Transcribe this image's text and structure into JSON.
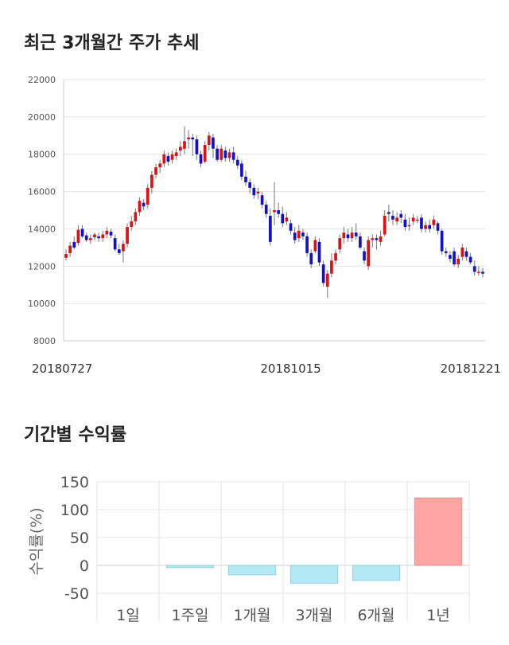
{
  "sections": {
    "price_title": "최근 3개월간 주가 추세",
    "returns_title": "기간별 수익률"
  },
  "chart_data": [
    {
      "type": "candlestick",
      "title": "최근 3개월간 주가 추세",
      "ylim": [
        8000,
        22000
      ],
      "y_ticks": [
        8000,
        10000,
        12000,
        14000,
        16000,
        18000,
        20000,
        22000
      ],
      "x_tick_labels": [
        {
          "label": "20180727",
          "index": 0
        },
        {
          "label": "20181015",
          "index": 55
        },
        {
          "label": "20181221",
          "index": 102
        }
      ],
      "colors": {
        "up": "#dd1111",
        "down": "#1111cc"
      },
      "grid": true,
      "candles": [
        [
          12450,
          12650,
          12300,
          12900
        ],
        [
          12700,
          13100,
          12500,
          13300
        ],
        [
          13300,
          13000,
          12900,
          13600
        ],
        [
          13250,
          13950,
          13100,
          14200
        ],
        [
          14000,
          13600,
          13500,
          14200
        ],
        [
          13650,
          13400,
          13300,
          13800
        ],
        [
          13400,
          13500,
          13200,
          13700
        ],
        [
          13550,
          13700,
          13400,
          13800
        ],
        [
          13600,
          13500,
          13300,
          13800
        ],
        [
          13500,
          13700,
          13300,
          13900
        ],
        [
          13700,
          13900,
          13500,
          14100
        ],
        [
          13850,
          13650,
          13500,
          14000
        ],
        [
          13500,
          12900,
          12800,
          13700
        ],
        [
          12900,
          12700,
          12600,
          13200
        ],
        [
          12800,
          13200,
          12200,
          13400
        ],
        [
          13200,
          14100,
          13000,
          14300
        ],
        [
          14100,
          14400,
          13900,
          14700
        ],
        [
          14400,
          14900,
          14200,
          15100
        ],
        [
          14900,
          15500,
          14700,
          15700
        ],
        [
          15400,
          15200,
          15000,
          15600
        ],
        [
          15300,
          16200,
          15100,
          16400
        ],
        [
          16200,
          16900,
          15900,
          17100
        ],
        [
          16900,
          17300,
          16700,
          17500
        ],
        [
          17300,
          17500,
          17000,
          17700
        ],
        [
          17500,
          18000,
          17300,
          18200
        ],
        [
          17900,
          17600,
          17400,
          18100
        ],
        [
          17700,
          18000,
          17500,
          18200
        ],
        [
          17900,
          18100,
          17700,
          18300
        ],
        [
          18200,
          18400,
          17900,
          18700
        ],
        [
          18300,
          18700,
          18000,
          19500
        ],
        [
          18800,
          18900,
          18300,
          19300
        ],
        [
          18900,
          18800,
          17900,
          19100
        ],
        [
          18800,
          18000,
          17700,
          19000
        ],
        [
          18000,
          17500,
          17300,
          18200
        ],
        [
          17600,
          18500,
          17500,
          18700
        ],
        [
          18500,
          19000,
          18200,
          19200
        ],
        [
          18900,
          18300,
          17800,
          19100
        ],
        [
          18300,
          17700,
          17600,
          18500
        ],
        [
          17700,
          18300,
          17600,
          18500
        ],
        [
          18200,
          17800,
          17600,
          18400
        ],
        [
          17800,
          18100,
          17600,
          18300
        ],
        [
          18100,
          17700,
          17500,
          18400
        ],
        [
          17700,
          17400,
          17200,
          17900
        ],
        [
          17500,
          16800,
          16600,
          17700
        ],
        [
          16800,
          16500,
          16300,
          17100
        ],
        [
          16500,
          16200,
          15900,
          16700
        ],
        [
          16200,
          15800,
          15600,
          16400
        ],
        [
          15900,
          16000,
          15600,
          16200
        ],
        [
          15800,
          15300,
          15100,
          16000
        ],
        [
          15300,
          14800,
          14600,
          15500
        ],
        [
          14700,
          13300,
          13100,
          15100
        ],
        [
          14900,
          15000,
          14200,
          16500
        ],
        [
          15000,
          14800,
          14600,
          15400
        ],
        [
          14800,
          14300,
          14100,
          15200
        ],
        [
          14400,
          14600,
          14200,
          14900
        ],
        [
          14300,
          13900,
          13700,
          14500
        ],
        [
          13800,
          13400,
          13200,
          14100
        ],
        [
          13500,
          13900,
          13300,
          14200
        ],
        [
          13800,
          13600,
          13400,
          14000
        ],
        [
          13600,
          12700,
          12500,
          13800
        ],
        [
          12700,
          12100,
          11900,
          12900
        ],
        [
          12800,
          13400,
          12700,
          13600
        ],
        [
          13300,
          12200,
          12000,
          13500
        ],
        [
          12100,
          11100,
          10900,
          12300
        ],
        [
          10900,
          11600,
          10300,
          11800
        ],
        [
          11600,
          12300,
          11400,
          12700
        ],
        [
          12300,
          12700,
          12100,
          12900
        ],
        [
          12900,
          13500,
          12700,
          13700
        ],
        [
          13500,
          13800,
          13200,
          14100
        ],
        [
          13700,
          13500,
          13300,
          14000
        ],
        [
          13500,
          13800,
          13300,
          14100
        ],
        [
          13800,
          13600,
          13400,
          14300
        ],
        [
          13600,
          13000,
          12900,
          13800
        ],
        [
          12800,
          12300,
          12100,
          13000
        ],
        [
          12000,
          13400,
          11800,
          13600
        ],
        [
          13400,
          13500,
          13000,
          13700
        ],
        [
          13500,
          13400,
          12900,
          13700
        ],
        [
          13300,
          13600,
          13100,
          13900
        ],
        [
          13700,
          14700,
          13600,
          15000
        ],
        [
          14900,
          14800,
          14400,
          15300
        ],
        [
          14700,
          14500,
          14200,
          15000
        ],
        [
          14400,
          14600,
          14200,
          14900
        ],
        [
          14800,
          14600,
          14300,
          15000
        ],
        [
          14500,
          14100,
          13900,
          14800
        ],
        [
          14200,
          14200,
          13900,
          14600
        ],
        [
          14400,
          14600,
          14200,
          14800
        ],
        [
          14500,
          14500,
          14300,
          14700
        ],
        [
          14600,
          14000,
          13800,
          14800
        ],
        [
          14000,
          14200,
          13800,
          14400
        ],
        [
          14200,
          14000,
          13800,
          14500
        ],
        [
          14200,
          14500,
          14000,
          14700
        ],
        [
          14300,
          13900,
          13700,
          14400
        ],
        [
          13900,
          12800,
          12600,
          14000
        ],
        [
          12800,
          12700,
          12500,
          13000
        ],
        [
          12600,
          12400,
          12200,
          12800
        ],
        [
          12800,
          12100,
          12000,
          13000
        ],
        [
          12100,
          12400,
          11900,
          12600
        ],
        [
          12500,
          13000,
          12300,
          13200
        ],
        [
          12800,
          12500,
          12300,
          13000
        ],
        [
          12500,
          12200,
          12100,
          12700
        ],
        [
          12000,
          11700,
          11500,
          12300
        ],
        [
          11700,
          11700,
          11500,
          12000
        ],
        [
          11700,
          11600,
          11400,
          11900
        ]
      ]
    },
    {
      "type": "bar",
      "title": "기간별 수익률",
      "categories": [
        "1일",
        "1주일",
        "1개월",
        "3개월",
        "6개월",
        "1년"
      ],
      "values": [
        0,
        -4,
        -17,
        -32,
        -27,
        121
      ],
      "ylabel": "수익률(%)",
      "ylim": [
        -60,
        150
      ],
      "y_ticks": [
        -50,
        0,
        50,
        100,
        150
      ],
      "colors": {
        "negative": "#b3e9f5",
        "positive": "#ffa5a5"
      },
      "grid": true
    }
  ]
}
